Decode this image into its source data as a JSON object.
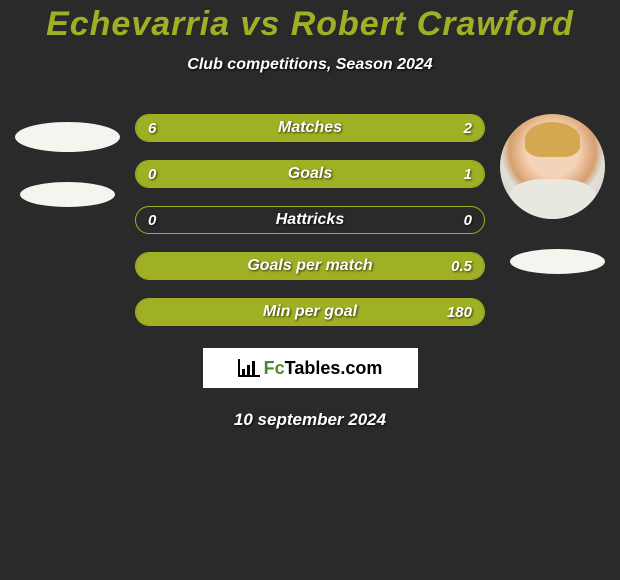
{
  "title": "Echevarria vs Robert Crawford",
  "subtitle": "Club competitions, Season 2024",
  "colors": {
    "background": "#2a2a2a",
    "accent": "#a0b024",
    "text": "#ffffff"
  },
  "stats": [
    {
      "label": "Matches",
      "left_value": "6",
      "right_value": "2",
      "left_fill_pct": 75,
      "right_fill_pct": 25
    },
    {
      "label": "Goals",
      "left_value": "0",
      "right_value": "1",
      "left_fill_pct": 0,
      "right_fill_pct": 100
    },
    {
      "label": "Hattricks",
      "left_value": "0",
      "right_value": "0",
      "left_fill_pct": 0,
      "right_fill_pct": 0
    },
    {
      "label": "Goals per match",
      "left_value": "",
      "right_value": "0.5",
      "left_fill_pct": 0,
      "right_fill_pct": 100
    },
    {
      "label": "Min per goal",
      "left_value": "",
      "right_value": "180",
      "left_fill_pct": 0,
      "right_fill_pct": 100
    }
  ],
  "logo": {
    "prefix": "Fc",
    "suffix": "Tables.com"
  },
  "date": "10 september 2024"
}
